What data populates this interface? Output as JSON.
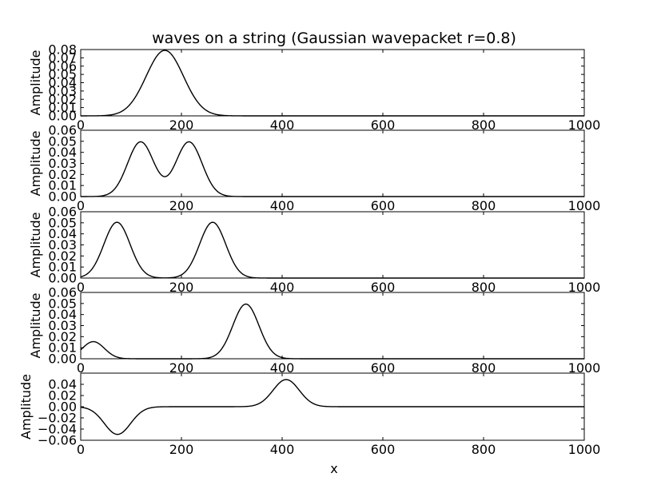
{
  "title": "waves on a string (Gaussian wavepacket r=0.8)",
  "xlabel": "x",
  "colors": {
    "line": "#000000",
    "frame": "#000000",
    "background": "#ffffff"
  },
  "chart_data": [
    {
      "type": "line",
      "ylabel": "Amplitude",
      "xlim": [
        0,
        1000
      ],
      "ylim": [
        0,
        0.08
      ],
      "xticks": [
        0,
        200,
        400,
        600,
        800,
        1000
      ],
      "yticks": [
        0.0,
        0.01,
        0.02,
        0.03,
        0.04,
        0.05,
        0.06,
        0.07,
        0.08
      ],
      "ytick_labels": [
        "0.00",
        "0.01",
        "0.02",
        "0.03",
        "0.04",
        "0.05",
        "0.06",
        "0.07",
        "0.08"
      ],
      "xtick_labels": [
        "0",
        "200",
        "400",
        "600",
        "800",
        "1000"
      ],
      "grid": false,
      "series": [
        {
          "gaussians": [
            {
              "amplitude": 0.079,
              "center": 167,
              "width": 37
            }
          ]
        }
      ]
    },
    {
      "type": "line",
      "ylabel": "Amplitude",
      "xlim": [
        0,
        1000
      ],
      "ylim": [
        0,
        0.06
      ],
      "xticks": [
        0,
        200,
        400,
        600,
        800,
        1000
      ],
      "yticks": [
        0.0,
        0.01,
        0.02,
        0.03,
        0.04,
        0.05,
        0.06
      ],
      "ytick_labels": [
        "0.00",
        "0.01",
        "0.02",
        "0.03",
        "0.04",
        "0.05",
        "0.06"
      ],
      "xtick_labels": [
        "0",
        "200",
        "400",
        "600",
        "800",
        "1000"
      ],
      "grid": false,
      "series": [
        {
          "gaussians": [
            {
              "amplitude": 0.0495,
              "center": 119,
              "width": 26
            },
            {
              "amplitude": 0.0495,
              "center": 215,
              "width": 26
            }
          ]
        }
      ]
    },
    {
      "type": "line",
      "ylabel": "Amplitude",
      "xlim": [
        0,
        1000
      ],
      "ylim": [
        0,
        0.06
      ],
      "xticks": [
        0,
        200,
        400,
        600,
        800,
        1000
      ],
      "yticks": [
        0.0,
        0.01,
        0.02,
        0.03,
        0.04,
        0.05,
        0.06
      ],
      "ytick_labels": [
        "0.00",
        "0.01",
        "0.02",
        "0.03",
        "0.04",
        "0.05",
        "0.06"
      ],
      "xtick_labels": [
        "0",
        "200",
        "400",
        "600",
        "800",
        "1000"
      ],
      "grid": false,
      "series": [
        {
          "gaussians": [
            {
              "amplitude": 0.0505,
              "center": 72,
              "width": 26
            },
            {
              "amplitude": 0.0505,
              "center": 262,
              "width": 26
            }
          ]
        }
      ]
    },
    {
      "type": "line",
      "ylabel": "Amplitude",
      "xlim": [
        0,
        1000
      ],
      "ylim": [
        0,
        0.06
      ],
      "xticks": [
        0,
        200,
        400,
        600,
        800,
        1000
      ],
      "yticks": [
        0.0,
        0.01,
        0.02,
        0.03,
        0.04,
        0.05,
        0.06
      ],
      "ytick_labels": [
        "0.00",
        "0.01",
        "0.02",
        "0.03",
        "0.04",
        "0.05",
        "0.06"
      ],
      "xtick_labels": [
        "0",
        "200",
        "400",
        "600",
        "800",
        "1000"
      ],
      "grid": false,
      "series": [
        {
          "gaussians": [
            {
              "amplitude": 0.0155,
              "center": 25,
              "width": 22
            },
            {
              "amplitude": 0.0495,
              "center": 328,
              "width": 26
            }
          ]
        }
      ]
    },
    {
      "type": "line",
      "ylabel": "Amplitude",
      "xlim": [
        0,
        1000
      ],
      "ylim": [
        -0.06,
        0.06
      ],
      "xticks": [
        0,
        200,
        400,
        600,
        800,
        1000
      ],
      "yticks": [
        -0.06,
        -0.04,
        -0.02,
        0.0,
        0.02,
        0.04
      ],
      "ytick_labels": [
        "−0.06",
        "−0.04",
        "−0.02",
        "0.00",
        "0.02",
        "0.04"
      ],
      "xtick_labels": [
        "0",
        "200",
        "400",
        "600",
        "800",
        "1000"
      ],
      "grid": false,
      "series": [
        {
          "gaussians": [
            {
              "amplitude": -0.0495,
              "center": 73,
              "width": 26
            },
            {
              "amplitude": 0.0485,
              "center": 408,
              "width": 26
            }
          ]
        }
      ]
    }
  ]
}
